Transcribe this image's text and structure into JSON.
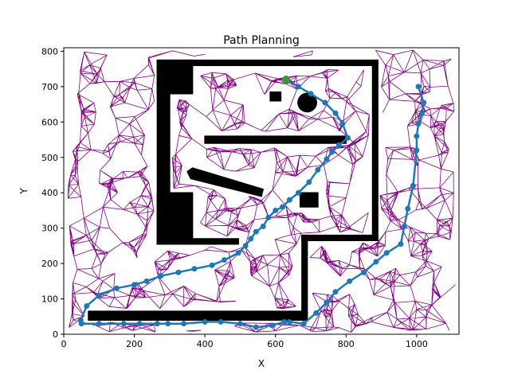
{
  "chart_data": {
    "type": "scatter",
    "title": "Path Planning",
    "xlabel": "X",
    "ylabel": "Y",
    "xlim": [
      0,
      1120
    ],
    "ylim": [
      0,
      810
    ],
    "xticks": [
      0,
      200,
      400,
      600,
      800,
      1000
    ],
    "yticks": [
      0,
      100,
      200,
      300,
      400,
      500,
      600,
      700,
      800
    ],
    "grid": false,
    "legend": "none",
    "colors": {
      "graph_edges": "#800080",
      "obstacles": "#000000",
      "path": "#1f77b4",
      "start": "#2ca02c"
    },
    "obstacles": [
      {
        "shape": "polygon",
        "points": [
          [
            265,
            775
          ],
          [
            890,
            775
          ],
          [
            890,
            760
          ],
          [
            265,
            760
          ]
        ]
      },
      {
        "shape": "polygon",
        "points": [
          [
            265,
            775
          ],
          [
            365,
            775
          ],
          [
            365,
            680
          ],
          [
            265,
            680
          ]
        ]
      },
      {
        "shape": "polygon",
        "points": [
          [
            265,
            760
          ],
          [
            300,
            760
          ],
          [
            300,
            255
          ],
          [
            265,
            255
          ]
        ]
      },
      {
        "shape": "polygon",
        "points": [
          [
            265,
            400
          ],
          [
            365,
            400
          ],
          [
            365,
            255
          ],
          [
            265,
            255
          ]
        ]
      },
      {
        "shape": "polygon",
        "points": [
          [
            265,
            270
          ],
          [
            495,
            270
          ],
          [
            495,
            255
          ],
          [
            265,
            255
          ]
        ]
      },
      {
        "shape": "polygon",
        "points": [
          [
            875,
            775
          ],
          [
            890,
            775
          ],
          [
            890,
            265
          ],
          [
            875,
            265
          ]
        ]
      },
      {
        "shape": "polygon",
        "points": [
          [
            675,
            280
          ],
          [
            890,
            280
          ],
          [
            890,
            265
          ],
          [
            675,
            265
          ]
        ]
      },
      {
        "shape": "polygon",
        "points": [
          [
            675,
            280
          ],
          [
            690,
            280
          ],
          [
            690,
            55
          ],
          [
            675,
            55
          ]
        ]
      },
      {
        "shape": "polygon",
        "points": [
          [
            70,
            65
          ],
          [
            690,
            65
          ],
          [
            690,
            40
          ],
          [
            70,
            40
          ]
        ]
      },
      {
        "shape": "polygon",
        "points": [
          [
            400,
            560
          ],
          [
            800,
            560
          ],
          [
            800,
            540
          ],
          [
            400,
            540
          ]
        ]
      },
      {
        "shape": "polygon",
        "points": [
          [
            585,
            685
          ],
          [
            615,
            685
          ],
          [
            615,
            660
          ],
          [
            585,
            660
          ]
        ]
      },
      {
        "shape": "polygon",
        "points": [
          [
            670,
            400
          ],
          [
            720,
            400
          ],
          [
            720,
            360
          ],
          [
            670,
            360
          ]
        ]
      },
      {
        "shape": "polygon",
        "points": [
          [
            350,
            460
          ],
          [
            365,
            470
          ],
          [
            565,
            410
          ],
          [
            560,
            390
          ],
          [
            360,
            440
          ]
        ]
      },
      {
        "shape": "circle",
        "center": [
          690,
          655
        ],
        "r": 28
      }
    ],
    "path": {
      "x": [
        630,
        665,
        700,
        740,
        770,
        790,
        805,
        780,
        760,
        745,
        720,
        695,
        665,
        640,
        620,
        600,
        580,
        565,
        545,
        530,
        515,
        495,
        455,
        420,
        370,
        325,
        275,
        235,
        200,
        150,
        100,
        65,
        48,
        50,
        100,
        170,
        215,
        265,
        295,
        340,
        400,
        445,
        500,
        545,
        590,
        625,
        640,
        680,
        715,
        745,
        770,
        810,
        850,
        885,
        915,
        955,
        965,
        975,
        990,
        1000,
        1000,
        1005,
        1015,
        1020,
        1005
      ],
      "y": [
        720,
        700,
        680,
        655,
        625,
        595,
        555,
        535,
        515,
        495,
        465,
        430,
        400,
        380,
        360,
        350,
        330,
        305,
        290,
        270,
        250,
        230,
        210,
        195,
        185,
        175,
        165,
        150,
        140,
        130,
        110,
        80,
        40,
        30,
        30,
        30,
        30,
        30,
        30,
        30,
        35,
        35,
        30,
        20,
        25,
        35,
        35,
        30,
        60,
        90,
        120,
        150,
        175,
        205,
        230,
        255,
        305,
        355,
        420,
        520,
        560,
        595,
        625,
        655,
        700
      ]
    },
    "start": [
      630,
      720
    ]
  }
}
